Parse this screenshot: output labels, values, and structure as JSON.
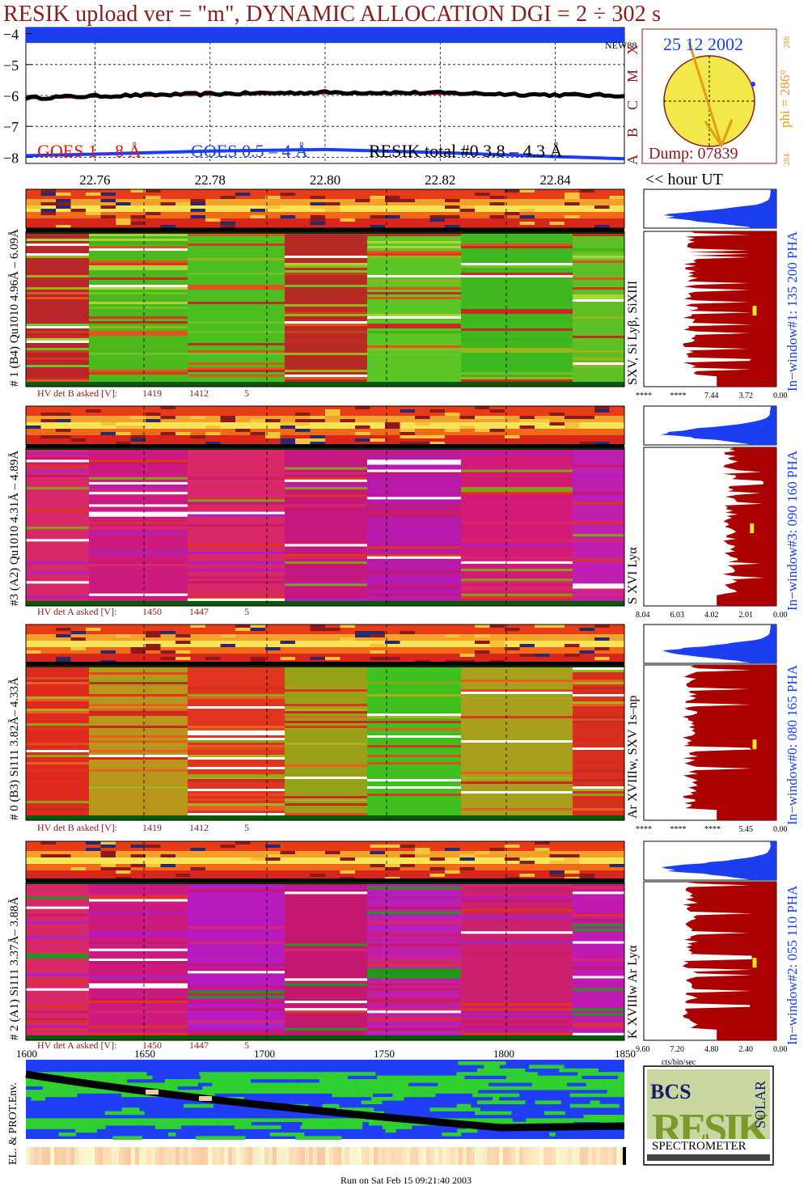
{
  "title": "RESIK upload ver = \"m\", DYNAMIC ALLOCATION  DGI =   2 ÷ 302 s",
  "chart_data": [
    {
      "type": "line",
      "panel": "goes",
      "ylim": [
        -8.2,
        -3.8
      ],
      "yticks": [
        "−4",
        "−5",
        "−6",
        "−7",
        "−8"
      ],
      "ytick_values": [
        -4,
        -5,
        -6,
        -7,
        -8
      ],
      "x": [
        22.748,
        22.76,
        22.78,
        22.8,
        22.82,
        22.84,
        22.852
      ],
      "xlim": [
        22.748,
        22.852
      ],
      "xticks": [
        "22.76",
        "22.78",
        "22.80",
        "22.82",
        "22.84"
      ],
      "xtick_values": [
        22.76,
        22.78,
        22.8,
        22.82,
        22.84
      ],
      "xaxis_label": "<< hour UT",
      "series": [
        {
          "name": "GOES 1 – 8 Å",
          "color": "#e8140c",
          "values": [
            -6.1,
            -6.05,
            -5.98,
            -5.94,
            -5.96,
            -6.0,
            -6.02
          ]
        },
        {
          "name": "GOES 0.5 – 4 Å",
          "color": "#1a3ef0",
          "values": [
            -7.95,
            -7.9,
            -7.8,
            -7.75,
            -7.85,
            -7.98,
            -8.05
          ]
        },
        {
          "name": "RESIK total #0  3.8 – 4.3 Å",
          "color": "#000000",
          "values": [
            -6.08,
            -6.02,
            -5.95,
            -5.9,
            -5.92,
            -5.98,
            -6.0
          ]
        }
      ],
      "band": {
        "label": "NEW88",
        "color": "#1a3ef0",
        "range": [
          -4.3,
          -3.8
        ]
      },
      "class_labels": [
        "A",
        "B",
        "C",
        "M",
        "X"
      ]
    },
    {
      "type": "area",
      "panel": "histograms",
      "windows": [
        {
          "label": "In−window#1:  135 200 PHA",
          "lines": "SXV, Si Lyβ, SiXIII",
          "xticks": [
            "****",
            "****",
            "7.44",
            "3.72",
            "0.00"
          ],
          "hv_label": "HV det B asked [V]:",
          "hv_asked": "1419",
          "hv_set": "1412",
          "hv_tol": "5",
          "range_label": "# 1 (B4) Qu1010 4.96Å – 6.09Å"
        },
        {
          "label": "In−window#3:  090 160 PHA",
          "lines": "S XVI Lyα",
          "xticks": [
            "8.04",
            "6.03",
            "4.02",
            "2.01",
            "0.00"
          ],
          "hv_label": "HV det A asked [V]:",
          "hv_asked": "1450",
          "hv_set": "1447",
          "hv_tol": "5",
          "range_label": "#3 (A2) Qu1010  4.31Å – 4.89Å"
        },
        {
          "label": "In−window#0:  080 165 PHA",
          "lines": "Ar XVIIIw, SXV 1s–np",
          "xticks": [
            "****",
            "****",
            "****",
            "5.45",
            "0.00"
          ],
          "hv_label": "HV det B asked [V]:",
          "hv_asked": "1419",
          "hv_set": "1412",
          "hv_tol": "5",
          "range_label": "# 0 (B3) Si111  3.82Å– 4.33Å"
        },
        {
          "label": "In−window#2:  055 110 PHA",
          "lines": "K XVIIIw   Ar Lyα",
          "xticks": [
            "9.60",
            "7.20",
            "4.80",
            "2.40",
            "0.00"
          ],
          "hv_label": "HV det A asked [V]:",
          "hv_asked": "1450",
          "hv_set": "1447",
          "hv_tol": "5",
          "range_label": "# 2 (A1) Si111  3.37Å–  3.88Å"
        }
      ],
      "hist_xlabel": "cts/bin/sec"
    },
    {
      "type": "heatmap",
      "panel": "env",
      "ylabel": "EL. & PROT.Env.",
      "xticks": [
        "1600",
        "1650",
        "1700",
        "1750",
        "1800",
        "1850"
      ],
      "xtick_values": [
        1600,
        1650,
        1700,
        1750,
        1800,
        1850
      ]
    }
  ],
  "sun": {
    "date": "25 12 2002",
    "dump": "Dump: 07839",
    "phi": "phi = 286°",
    "phi_sub": "288",
    "phi_low": "284"
  },
  "logo": {
    "bcs": "BCS",
    "big": "RESIK",
    "side": "SOLAR",
    "bottom": "SPECTROMETER"
  },
  "footer": "Run on Sat Feb 15 09:21:40 2003",
  "colors": {
    "title": "#8b1a1a",
    "goes_long": "#e8140c",
    "goes_short": "#1a3ef0",
    "hist_fill": "#aa0000",
    "hist_top": "#1a3ef0",
    "grid": "#000000"
  }
}
